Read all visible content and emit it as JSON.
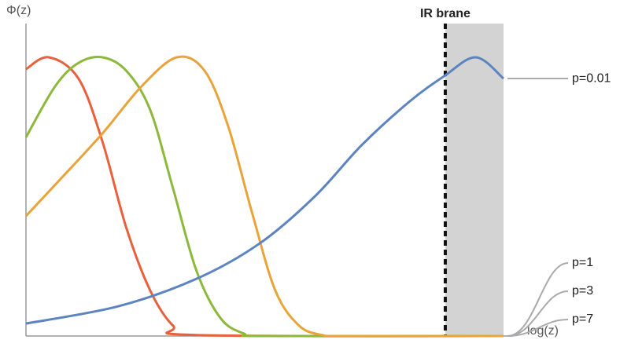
{
  "chart_data": {
    "type": "line",
    "y_label": "Φ(z)",
    "x_label": "log(z)",
    "xlim": [
      0,
      100
    ],
    "ylim": [
      0,
      100
    ],
    "ir_brane": {
      "label": "IR brane",
      "x": 87.8,
      "band_color": "#d3d3d3"
    },
    "series": [
      {
        "name": "p=0.01",
        "color": "#5b84c0",
        "x": [
          0,
          19.3,
          35.7,
          48.9,
          60.5,
          70.3,
          80.2,
          87.6,
          94.2,
          100
        ],
        "values": [
          4,
          9.5,
          18.3,
          29.6,
          44.7,
          61.1,
          74.9,
          83.2,
          89.2,
          82.4
        ]
      },
      {
        "name": "p=1",
        "color": "#e8a43a",
        "x": [
          0,
          7.7,
          16,
          24.2,
          31.6,
          37.4,
          42.3,
          47.3,
          52.2,
          57.2,
          62.1,
          67,
          100
        ],
        "values": [
          38.4,
          51,
          64.8,
          79.9,
          89.2,
          84.9,
          67.3,
          39.7,
          14.6,
          3.3,
          0.3,
          0,
          0
        ]
      },
      {
        "name": "p=3",
        "color": "#8db83c",
        "x": [
          0,
          6.1,
          11,
          16,
          21,
          26,
          30.8,
          35.7,
          40.7,
          45.6,
          50.6,
          100
        ],
        "values": [
          63.6,
          79.9,
          87.4,
          89.2,
          84.9,
          72.4,
          47.2,
          20.9,
          5.8,
          0.8,
          0,
          0
        ]
      },
      {
        "name": "p=7",
        "color": "#e8603c",
        "x": [
          0,
          4.8,
          11,
          16,
          21,
          26,
          30.8,
          35.7,
          100
        ],
        "values": [
          85.4,
          89.2,
          82.4,
          62.3,
          34.7,
          14.6,
          3.3,
          0.3,
          0
        ]
      }
    ]
  }
}
